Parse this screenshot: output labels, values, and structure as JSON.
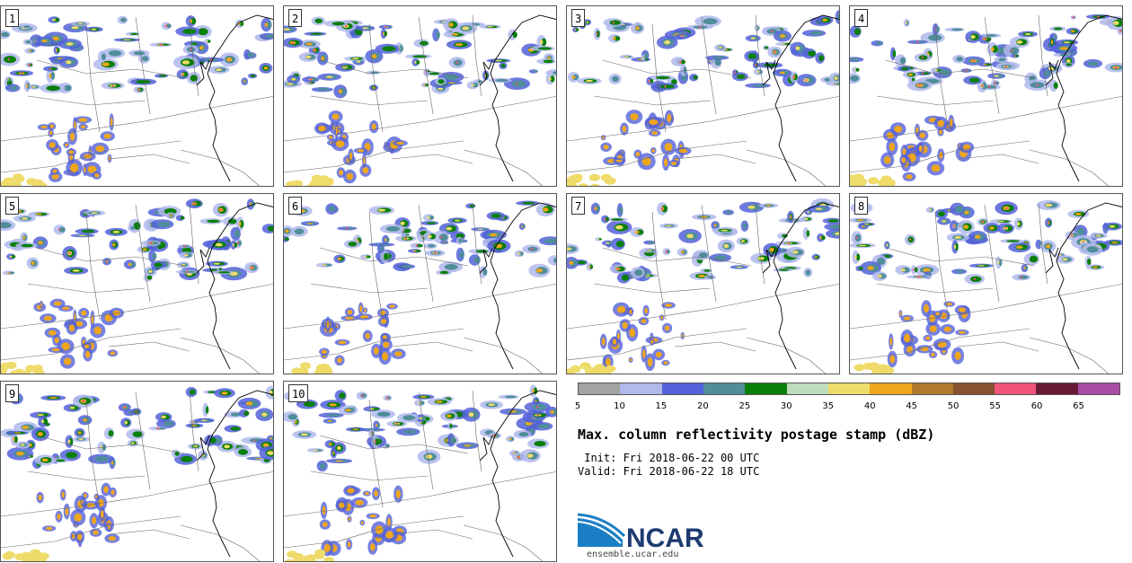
{
  "panels": [
    {
      "label": "1"
    },
    {
      "label": "2"
    },
    {
      "label": "3"
    },
    {
      "label": "4"
    },
    {
      "label": "5"
    },
    {
      "label": "6"
    },
    {
      "label": "7"
    },
    {
      "label": "8"
    },
    {
      "label": "9"
    },
    {
      "label": "10"
    }
  ],
  "colorbar": {
    "colors": [
      "#a3a3a3",
      "#b0b8ec",
      "#5461d8",
      "#4f8e99",
      "#0a7f0a",
      "#bcdcbc",
      "#eedb6a",
      "#eea61c",
      "#b0792e",
      "#865232",
      "#f0547a",
      "#671a35",
      "#a84ca4"
    ],
    "ticks": [
      "5",
      "10",
      "15",
      "20",
      "25",
      "30",
      "35",
      "40",
      "45",
      "50",
      "55",
      "60",
      "65"
    ]
  },
  "title": "Max. column reflectivity postage stamp (dBZ)",
  "init_text": " Init: Fri 2018-06-22 00 UTC",
  "valid_text": "Valid: Fri 2018-06-22 18 UTC",
  "logo": {
    "text": "NCAR",
    "url": "ensemble.ucar.edu"
  }
}
